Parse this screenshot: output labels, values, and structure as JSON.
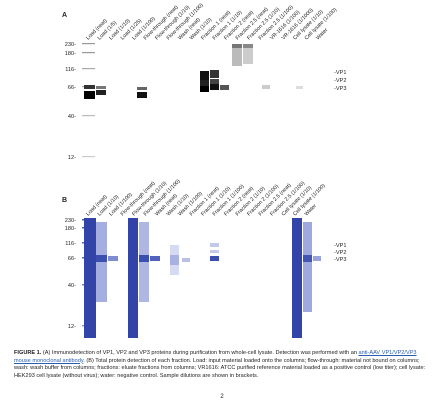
{
  "panel_a": {
    "letter": "A",
    "lanes": [
      "Load (neat)",
      "Load (1/5)",
      "Load (1/10)",
      "Load (1/25)",
      "Load (1/100)",
      "Flow-through (neat)",
      "Flow-through (1/10)",
      "Flow-through (1/100)",
      "Wash (neat)",
      "Wash (1/10)",
      "Fraction 1 (neat)",
      "Fraction 1 (1/10)",
      "Fraction 2 (neat)",
      "Fraction 2.5 (neat)",
      "Fraction 2.5 (1/10)",
      "Fraction 2.5 (1/100)",
      "VR-1616 (1/100)",
      "VR-1616 (1/1000)",
      "Cell lysate (1/10)",
      "Cell lysate (1/100)",
      "Water"
    ],
    "markers": [
      "230-",
      "180-",
      "116-",
      "66-",
      "40-",
      "12-"
    ],
    "bands": [
      "-VP1",
      "-VP2",
      "-VP3"
    ]
  },
  "panel_b": {
    "letter": "B",
    "lanes": [
      "Load (neat)",
      "Load (1/10)",
      "Load (1/100)",
      "Flow-through (neat)",
      "Flow-through (1/10)",
      "Flow-through (1/100)",
      "Wash (neat)",
      "Wash (1/10)",
      "Wash (1/100)",
      "Fraction 1 (neat)",
      "Fraction 1 (1/10)",
      "Fraction 1 (1/100)",
      "Fraction 2 (neat)",
      "Fraction 2 (1/10)",
      "Fraction 2 (1/100)",
      "Fraction 2.5 (neat)",
      "Fraction 2.5 (1/100)",
      "Cell lysate (1/10)",
      "Cell lysate (1/100)",
      "Water"
    ],
    "markers": [
      "230-",
      "180-",
      "116-",
      "66-",
      "40-",
      "12-"
    ],
    "bands": [
      "-VP1",
      "-VP2",
      "-VP3"
    ]
  },
  "caption": {
    "label": "FIGURE 1.",
    "part1": " (A) Immunodetection of VP1, VP2 and VP3 proteins during purification from whole-cell lysate. Detection was performed with an ",
    "link": "anti-AAV VP1/VP2/VP3 mouse monoclonal antibody",
    "part2": ". (B) Total protein detection of each fraction. Load: input material loaded onto the columns; flow-through: material not bound on columns; wash: wash buffer from columns; fractions: eluate fractions from columns; VR1616: ATCC purified reference material loaded as a positive control (low titer); cell lysate: HEK293 cell lysate (without virus); water: negative control. Sample dilutions are shown in brackets."
  },
  "page_number": "2",
  "colors": {
    "blot_a": "#000000",
    "blot_b": "#3a4fb0",
    "link": "#2a5db0"
  }
}
